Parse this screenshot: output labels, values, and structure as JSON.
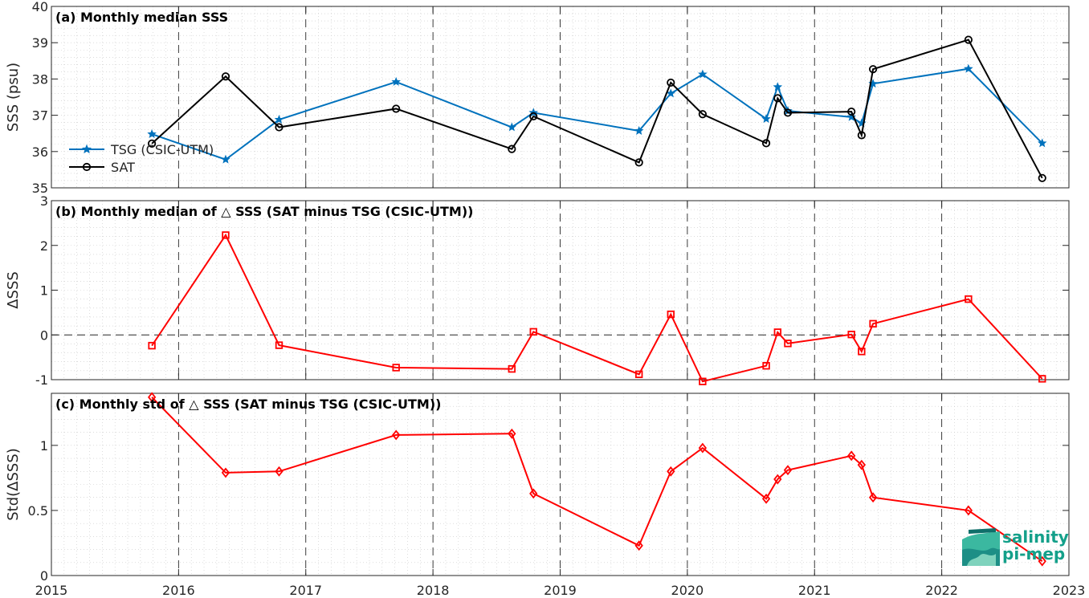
{
  "logo": {
    "line1": "salinity",
    "line2": "pi-mep"
  },
  "chart_data": [
    {
      "type": "line",
      "title": "(a) Monthly median SSS",
      "ylabel": "SSS (psu)",
      "xlim": [
        2015,
        2023
      ],
      "ylim": [
        35,
        40
      ],
      "yticks": [
        35,
        36,
        37,
        38,
        39,
        40
      ],
      "xticks": [
        2015,
        2016,
        2017,
        2018,
        2019,
        2020,
        2021,
        2022,
        2023
      ],
      "legend_loc": "left",
      "series": [
        {
          "name": "TSG (CSIC-UTM)",
          "color": "#0072bd",
          "marker": "star",
          "x": [
            2015.79,
            2016.37,
            2016.79,
            2017.71,
            2018.62,
            2018.79,
            2019.62,
            2019.87,
            2020.12,
            2020.62,
            2020.71,
            2020.79,
            2021.29,
            2021.37,
            2021.46,
            2022.21,
            2022.79
          ],
          "y": [
            36.48,
            35.78,
            36.88,
            37.92,
            36.67,
            37.07,
            36.57,
            37.6,
            38.13,
            36.9,
            37.78,
            37.12,
            36.95,
            36.78,
            37.87,
            38.28,
            36.23
          ]
        },
        {
          "name": "SAT",
          "color": "#000000",
          "marker": "circle",
          "x": [
            2015.79,
            2016.37,
            2016.79,
            2017.71,
            2018.62,
            2018.79,
            2019.62,
            2019.87,
            2020.12,
            2020.62,
            2020.71,
            2020.79,
            2021.29,
            2021.37,
            2021.46,
            2022.21,
            2022.79
          ],
          "y": [
            36.22,
            38.07,
            36.67,
            37.18,
            36.07,
            36.97,
            35.7,
            37.9,
            37.03,
            36.23,
            37.47,
            37.07,
            37.1,
            36.45,
            38.27,
            39.08,
            35.27
          ]
        }
      ]
    },
    {
      "type": "line",
      "title": "(b) Monthly median of △ SSS (SAT minus TSG (CSIC-UTM))",
      "ylabel": "ΔSSS",
      "xlim": [
        2015,
        2023
      ],
      "ylim": [
        -1,
        3
      ],
      "yticks": [
        -1,
        0,
        1,
        2,
        3
      ],
      "xticks": [
        2015,
        2016,
        2017,
        2018,
        2019,
        2020,
        2021,
        2022,
        2023
      ],
      "zero_line": true,
      "series": [
        {
          "color": "#ff0000",
          "marker": "square",
          "x": [
            2015.79,
            2016.37,
            2016.79,
            2017.71,
            2018.62,
            2018.79,
            2019.62,
            2019.87,
            2020.12,
            2020.62,
            2020.71,
            2020.79,
            2021.29,
            2021.37,
            2021.46,
            2022.21,
            2022.79
          ],
          "y": [
            -0.24,
            2.23,
            -0.23,
            -0.73,
            -0.76,
            0.07,
            -0.88,
            0.46,
            -1.04,
            -0.69,
            0.06,
            -0.19,
            0.01,
            -0.37,
            0.25,
            0.8,
            -0.98
          ]
        }
      ]
    },
    {
      "type": "line",
      "title": "(c) Monthly std of △ SSS (SAT minus TSG (CSIC-UTM))",
      "ylabel": "Std(ΔSSS)",
      "xlim": [
        2015,
        2023
      ],
      "ylim": [
        0,
        1.4
      ],
      "yticks": [
        0,
        0.5,
        1
      ],
      "ytick_labels": [
        "0",
        "0.5",
        "1"
      ],
      "xticks": [
        2015,
        2016,
        2017,
        2018,
        2019,
        2020,
        2021,
        2022,
        2023
      ],
      "xtick_labels": [
        "2015",
        "2016",
        "2017",
        "2018",
        "2019",
        "2020",
        "2021",
        "2022",
        "2023"
      ],
      "series": [
        {
          "color": "#ff0000",
          "marker": "diamond",
          "x": [
            2015.79,
            2016.37,
            2016.79,
            2017.71,
            2018.62,
            2018.79,
            2019.62,
            2019.87,
            2020.12,
            2020.62,
            2020.71,
            2020.79,
            2021.29,
            2021.37,
            2021.46,
            2022.21,
            2022.79
          ],
          "y": [
            1.37,
            0.79,
            0.8,
            1.08,
            1.09,
            0.63,
            0.23,
            0.8,
            0.98,
            0.59,
            0.74,
            0.81,
            0.92,
            0.85,
            0.6,
            0.5,
            0.11
          ]
        }
      ]
    }
  ]
}
